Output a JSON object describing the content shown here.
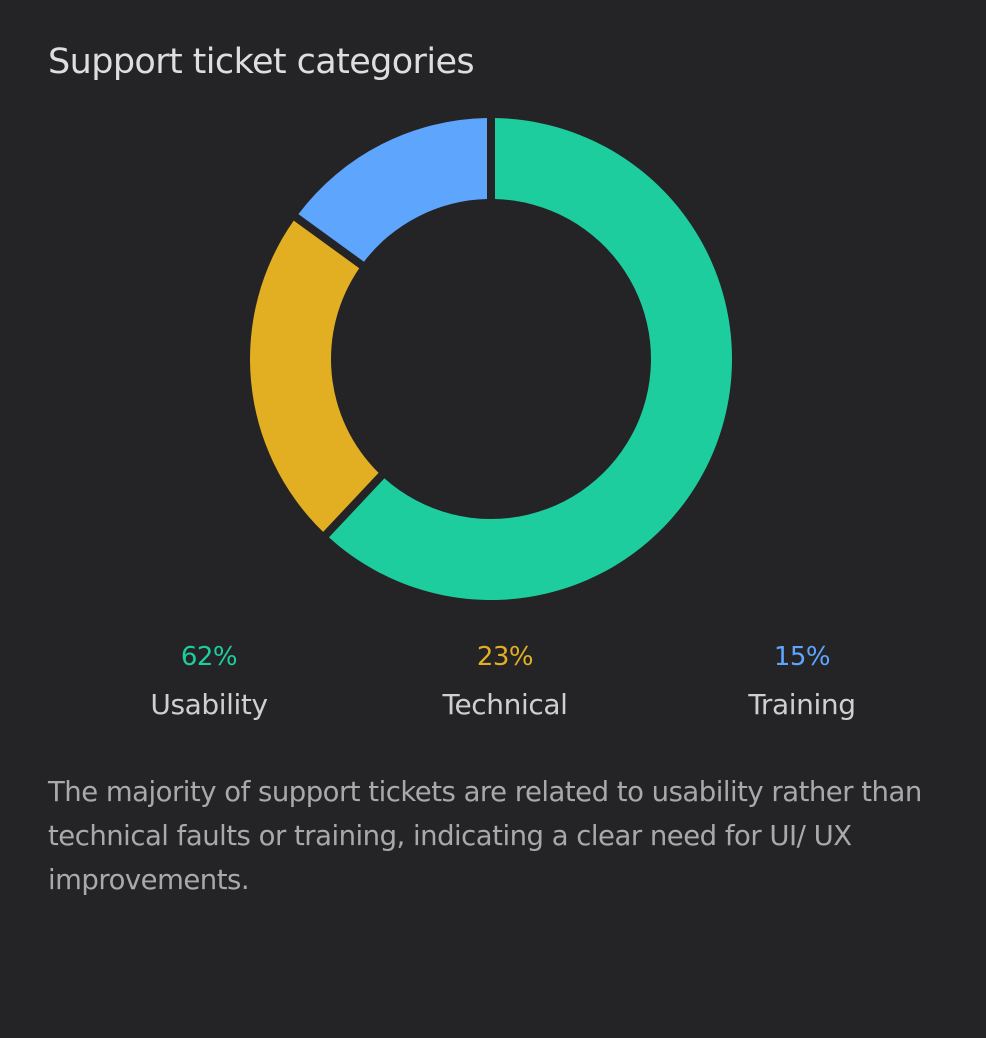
{
  "chart_data": {
    "type": "pie",
    "title": "Support ticket categories",
    "categories": [
      "Usability",
      "Technical",
      "Training"
    ],
    "values": [
      62,
      23,
      15
    ],
    "value_labels": [
      "62%",
      "23%",
      "15%"
    ],
    "colors": [
      "#1ecd9e",
      "#e2ae22",
      "#5ea5fd"
    ],
    "donut": true,
    "legend_position": "bottom"
  },
  "caption": "The majority of support tickets are related to usability rather than technical faults or training, indicating a clear need for UI/ UX improvements."
}
